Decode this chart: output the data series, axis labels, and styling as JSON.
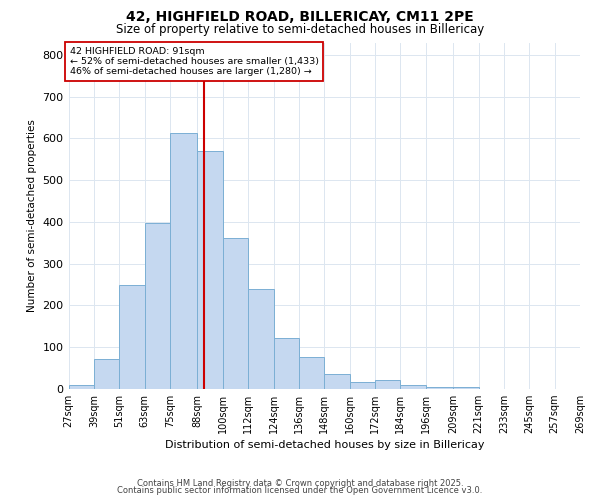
{
  "title1": "42, HIGHFIELD ROAD, BILLERICAY, CM11 2PE",
  "title2": "Size of property relative to semi-detached houses in Billericay",
  "xlabel": "Distribution of semi-detached houses by size in Billericay",
  "ylabel": "Number of semi-detached properties",
  "bin_labels": [
    "27sqm",
    "39sqm",
    "51sqm",
    "63sqm",
    "75sqm",
    "88sqm",
    "100sqm",
    "112sqm",
    "124sqm",
    "136sqm",
    "148sqm",
    "160sqm",
    "172sqm",
    "184sqm",
    "196sqm",
    "209sqm",
    "221sqm",
    "233sqm",
    "245sqm",
    "257sqm",
    "269sqm"
  ],
  "bin_edges": [
    27,
    39,
    51,
    63,
    75,
    88,
    100,
    112,
    124,
    136,
    148,
    160,
    172,
    184,
    196,
    209,
    221,
    233,
    245,
    257,
    269
  ],
  "bar_heights": [
    8,
    70,
    248,
    397,
    612,
    570,
    362,
    238,
    121,
    75,
    35,
    15,
    22,
    8,
    4,
    5,
    0,
    0,
    0,
    0
  ],
  "bar_color": "#c5d8f0",
  "bar_edge_color": "#7bafd4",
  "grid_color": "#dce6f0",
  "vline_x": 91,
  "vline_color": "#cc0000",
  "annotation_title": "42 HIGHFIELD ROAD: 91sqm",
  "annotation_line1": "← 52% of semi-detached houses are smaller (1,433)",
  "annotation_line2": "46% of semi-detached houses are larger (1,280) →",
  "annotation_box_color": "#ffffff",
  "annotation_box_edge": "#cc0000",
  "ylim": [
    0,
    830
  ],
  "yticks": [
    0,
    100,
    200,
    300,
    400,
    500,
    600,
    700,
    800
  ],
  "footer1": "Contains HM Land Registry data © Crown copyright and database right 2025.",
  "footer2": "Contains public sector information licensed under the Open Government Licence v3.0.",
  "bg_color": "#ffffff"
}
